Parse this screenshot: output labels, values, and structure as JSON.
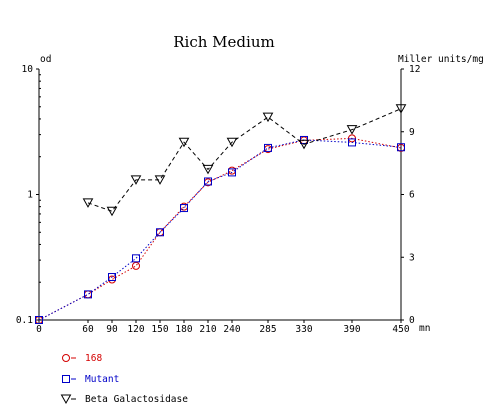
{
  "chart_data": {
    "type": "line",
    "title": "Rich Medium",
    "ylabel_left": "od",
    "ylabel_right": "Miller units/mg",
    "xlabel": "mn",
    "x": [
      0,
      60,
      90,
      120,
      150,
      180,
      210,
      240,
      285,
      330,
      390,
      450
    ],
    "x_tick_labels": [
      "0",
      "60",
      "90",
      "120",
      "150",
      "180",
      "210",
      "240",
      "285",
      "330",
      "390",
      "450"
    ],
    "y_left_scale": "log",
    "y_left_ticks": [
      "10",
      "1",
      "0.1"
    ],
    "y_left_range": [
      0.1,
      10
    ],
    "y_right_ticks": [
      "12",
      "9",
      "6",
      "3",
      "0"
    ],
    "y_right_range": [
      0,
      12
    ],
    "x_axis_type": "categorical",
    "grid": false,
    "legend_position": "bottom-left",
    "series": [
      {
        "name": "168",
        "axis": "left",
        "color": "#d40000",
        "marker": "circle",
        "line": "dotted",
        "x": [
          0,
          60,
          90,
          120,
          150,
          180,
          210,
          240,
          285,
          330,
          390,
          450
        ],
        "values": [
          0.1,
          0.16,
          0.21,
          0.27,
          0.5,
          0.8,
          1.25,
          1.55,
          2.3,
          2.7,
          2.8,
          2.35
        ]
      },
      {
        "name": "Mutant",
        "axis": "left",
        "color": "#0000c8",
        "marker": "square",
        "line": "dotted",
        "x": [
          0,
          60,
          90,
          120,
          150,
          180,
          210,
          240,
          285,
          330,
          390,
          450
        ],
        "values": [
          0.1,
          0.16,
          0.22,
          0.31,
          0.5,
          0.78,
          1.27,
          1.5,
          2.35,
          2.72,
          2.6,
          2.38
        ]
      },
      {
        "name": "Beta Galactosidase",
        "axis": "right",
        "color": "#000000",
        "marker": "triangle-down",
        "line": "dashed",
        "x": [
          60,
          90,
          120,
          150,
          180,
          210,
          240,
          285,
          330,
          390,
          450
        ],
        "values": [
          5.6,
          5.2,
          6.7,
          6.7,
          8.5,
          7.2,
          8.5,
          9.7,
          8.4,
          9.1,
          10.1
        ]
      }
    ]
  }
}
